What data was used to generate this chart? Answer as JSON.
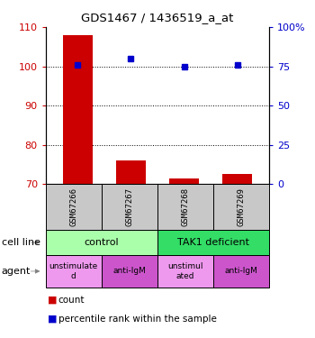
{
  "title": "GDS1467 / 1436519_a_at",
  "samples": [
    "GSM67266",
    "GSM67267",
    "GSM67268",
    "GSM67269"
  ],
  "bar_values": [
    108,
    76,
    71.5,
    72.5
  ],
  "percentile_values": [
    76,
    80,
    75,
    76
  ],
  "ylim_left": [
    70,
    110
  ],
  "ylim_right": [
    0,
    100
  ],
  "yticks_left": [
    70,
    80,
    90,
    100,
    110
  ],
  "yticks_right": [
    0,
    25,
    50,
    75,
    100
  ],
  "ytick_labels_right": [
    "0",
    "25",
    "50",
    "75",
    "100%"
  ],
  "bar_color": "#cc0000",
  "percentile_color": "#0000cc",
  "cell_line_groups": [
    {
      "label": "control",
      "cols": [
        0,
        1
      ],
      "color": "#aaffaa"
    },
    {
      "label": "TAK1 deficient",
      "cols": [
        2,
        3
      ],
      "color": "#33dd66"
    }
  ],
  "agent_row": [
    "unstimulate\nd",
    "anti-IgM",
    "unstimul\nated",
    "anti-IgM"
  ],
  "agent_colors": [
    "#ee99ee",
    "#cc55cc",
    "#ee99ee",
    "#cc55cc"
  ],
  "sample_bg_color": "#c8c8c8",
  "legend_count_label": "count",
  "legend_percentile_label": "percentile rank within the sample",
  "bar_baseline": 70,
  "bar_width": 0.55
}
